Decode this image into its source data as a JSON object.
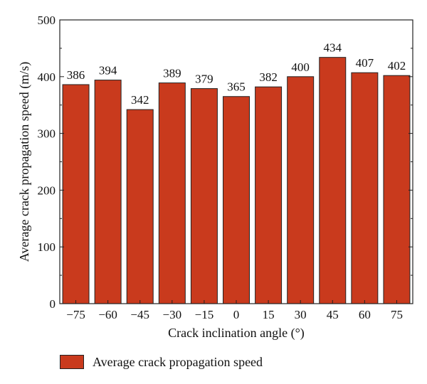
{
  "chart_data": {
    "type": "bar",
    "categories": [
      "−75",
      "−60",
      "−45",
      "−30",
      "−15",
      "0",
      "15",
      "30",
      "45",
      "60",
      "75"
    ],
    "series": [
      {
        "name": "Average crack propagation speed",
        "values": [
          386,
          394,
          342,
          389,
          379,
          365,
          382,
          400,
          434,
          407,
          402
        ],
        "data_labels": [
          "386",
          "394",
          "342",
          "389",
          "379",
          "365",
          "382",
          "400",
          "434",
          "407",
          "402"
        ],
        "color": "#c93a1d"
      }
    ],
    "xlabel": "Crack inclination angle (°)",
    "ylabel": "Average crack propagation speed (m/s)",
    "ylim": [
      0,
      500
    ],
    "yticks": [
      0,
      100,
      200,
      300,
      400,
      500
    ],
    "ytick_labels": [
      "0",
      "100",
      "200",
      "300",
      "400",
      "500"
    ],
    "grid": false,
    "legend_position": "bottom-left"
  },
  "colors": {
    "bar": "#c93a1d",
    "bar_border": "#222222",
    "axis": "#222222"
  }
}
